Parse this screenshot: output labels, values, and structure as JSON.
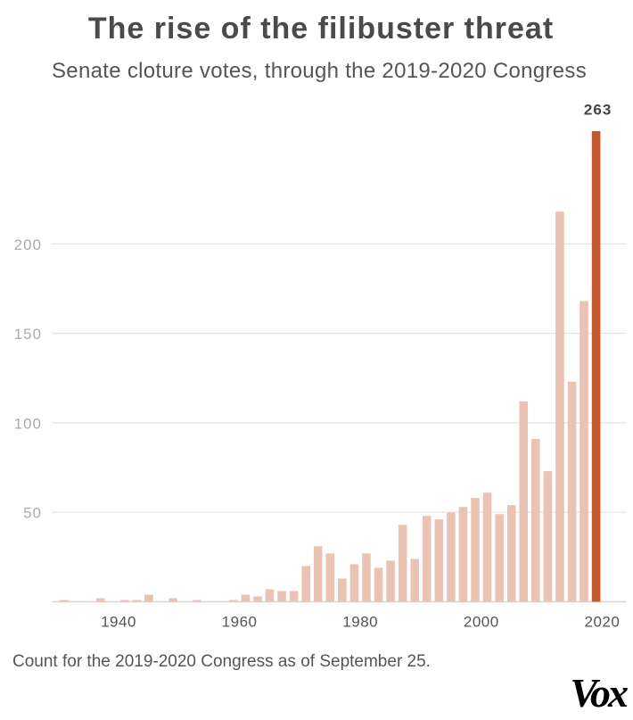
{
  "header": {
    "title": "The rise of the filibuster threat",
    "subtitle": "Senate cloture votes, through the 2019-2020 Congress"
  },
  "footer": {
    "note": "Count for the 2019-2020 Congress as of September 25.",
    "logo_text": "Vox"
  },
  "chart_data": {
    "type": "bar",
    "title": "The rise of the filibuster threat",
    "subtitle": "Senate cloture votes, through the 2019-2020 Congress",
    "xlabel": "",
    "ylabel": "",
    "categories": [
      "1929-1930",
      "1931-1932",
      "1933-1934",
      "1935-1936",
      "1937-1938",
      "1939-1940",
      "1941-1942",
      "1943-1944",
      "1945-1946",
      "1947-1948",
      "1949-1950",
      "1951-1952",
      "1953-1954",
      "1955-1956",
      "1957-1958",
      "1959-1960",
      "1961-1962",
      "1963-1964",
      "1965-1966",
      "1967-1968",
      "1969-1970",
      "1971-1972",
      "1973-1974",
      "1975-1976",
      "1977-1978",
      "1979-1980",
      "1981-1982",
      "1983-1984",
      "1985-1986",
      "1987-1988",
      "1989-1990",
      "1991-1992",
      "1993-1994",
      "1995-1996",
      "1997-1998",
      "1999-2000",
      "2001-2002",
      "2003-2004",
      "2005-2006",
      "2007-2008",
      "2009-2010",
      "2011-2012",
      "2013-2014",
      "2015-2016",
      "2017-2018",
      "2019-2020"
    ],
    "values": [
      0,
      1,
      0,
      0,
      2,
      0,
      1,
      1,
      4,
      0,
      2,
      0,
      1,
      0,
      0,
      1,
      4,
      3,
      7,
      6,
      6,
      20,
      31,
      27,
      13,
      21,
      27,
      19,
      23,
      43,
      24,
      48,
      46,
      50,
      53,
      58,
      61,
      49,
      54,
      112,
      91,
      73,
      218,
      123,
      168,
      263
    ],
    "x_ticks": [
      1940,
      1960,
      1980,
      2000,
      2020
    ],
    "y_ticks": [
      50,
      100,
      150,
      200
    ],
    "xlim": [
      1929,
      2024
    ],
    "ylim": [
      0,
      263
    ],
    "grid": true,
    "legend": "none",
    "highlight": {
      "category": "2019-2020"
    },
    "annotations": [
      {
        "category": "2019-2020",
        "text": "263"
      }
    ],
    "colors": {
      "bar": "#ebc3b5",
      "highlight": "#c4592f",
      "grid": "#e3e3e3",
      "baseline": "#d6d6d6"
    },
    "note": "Count for the 2019-2020 Congress as of September 25."
  }
}
